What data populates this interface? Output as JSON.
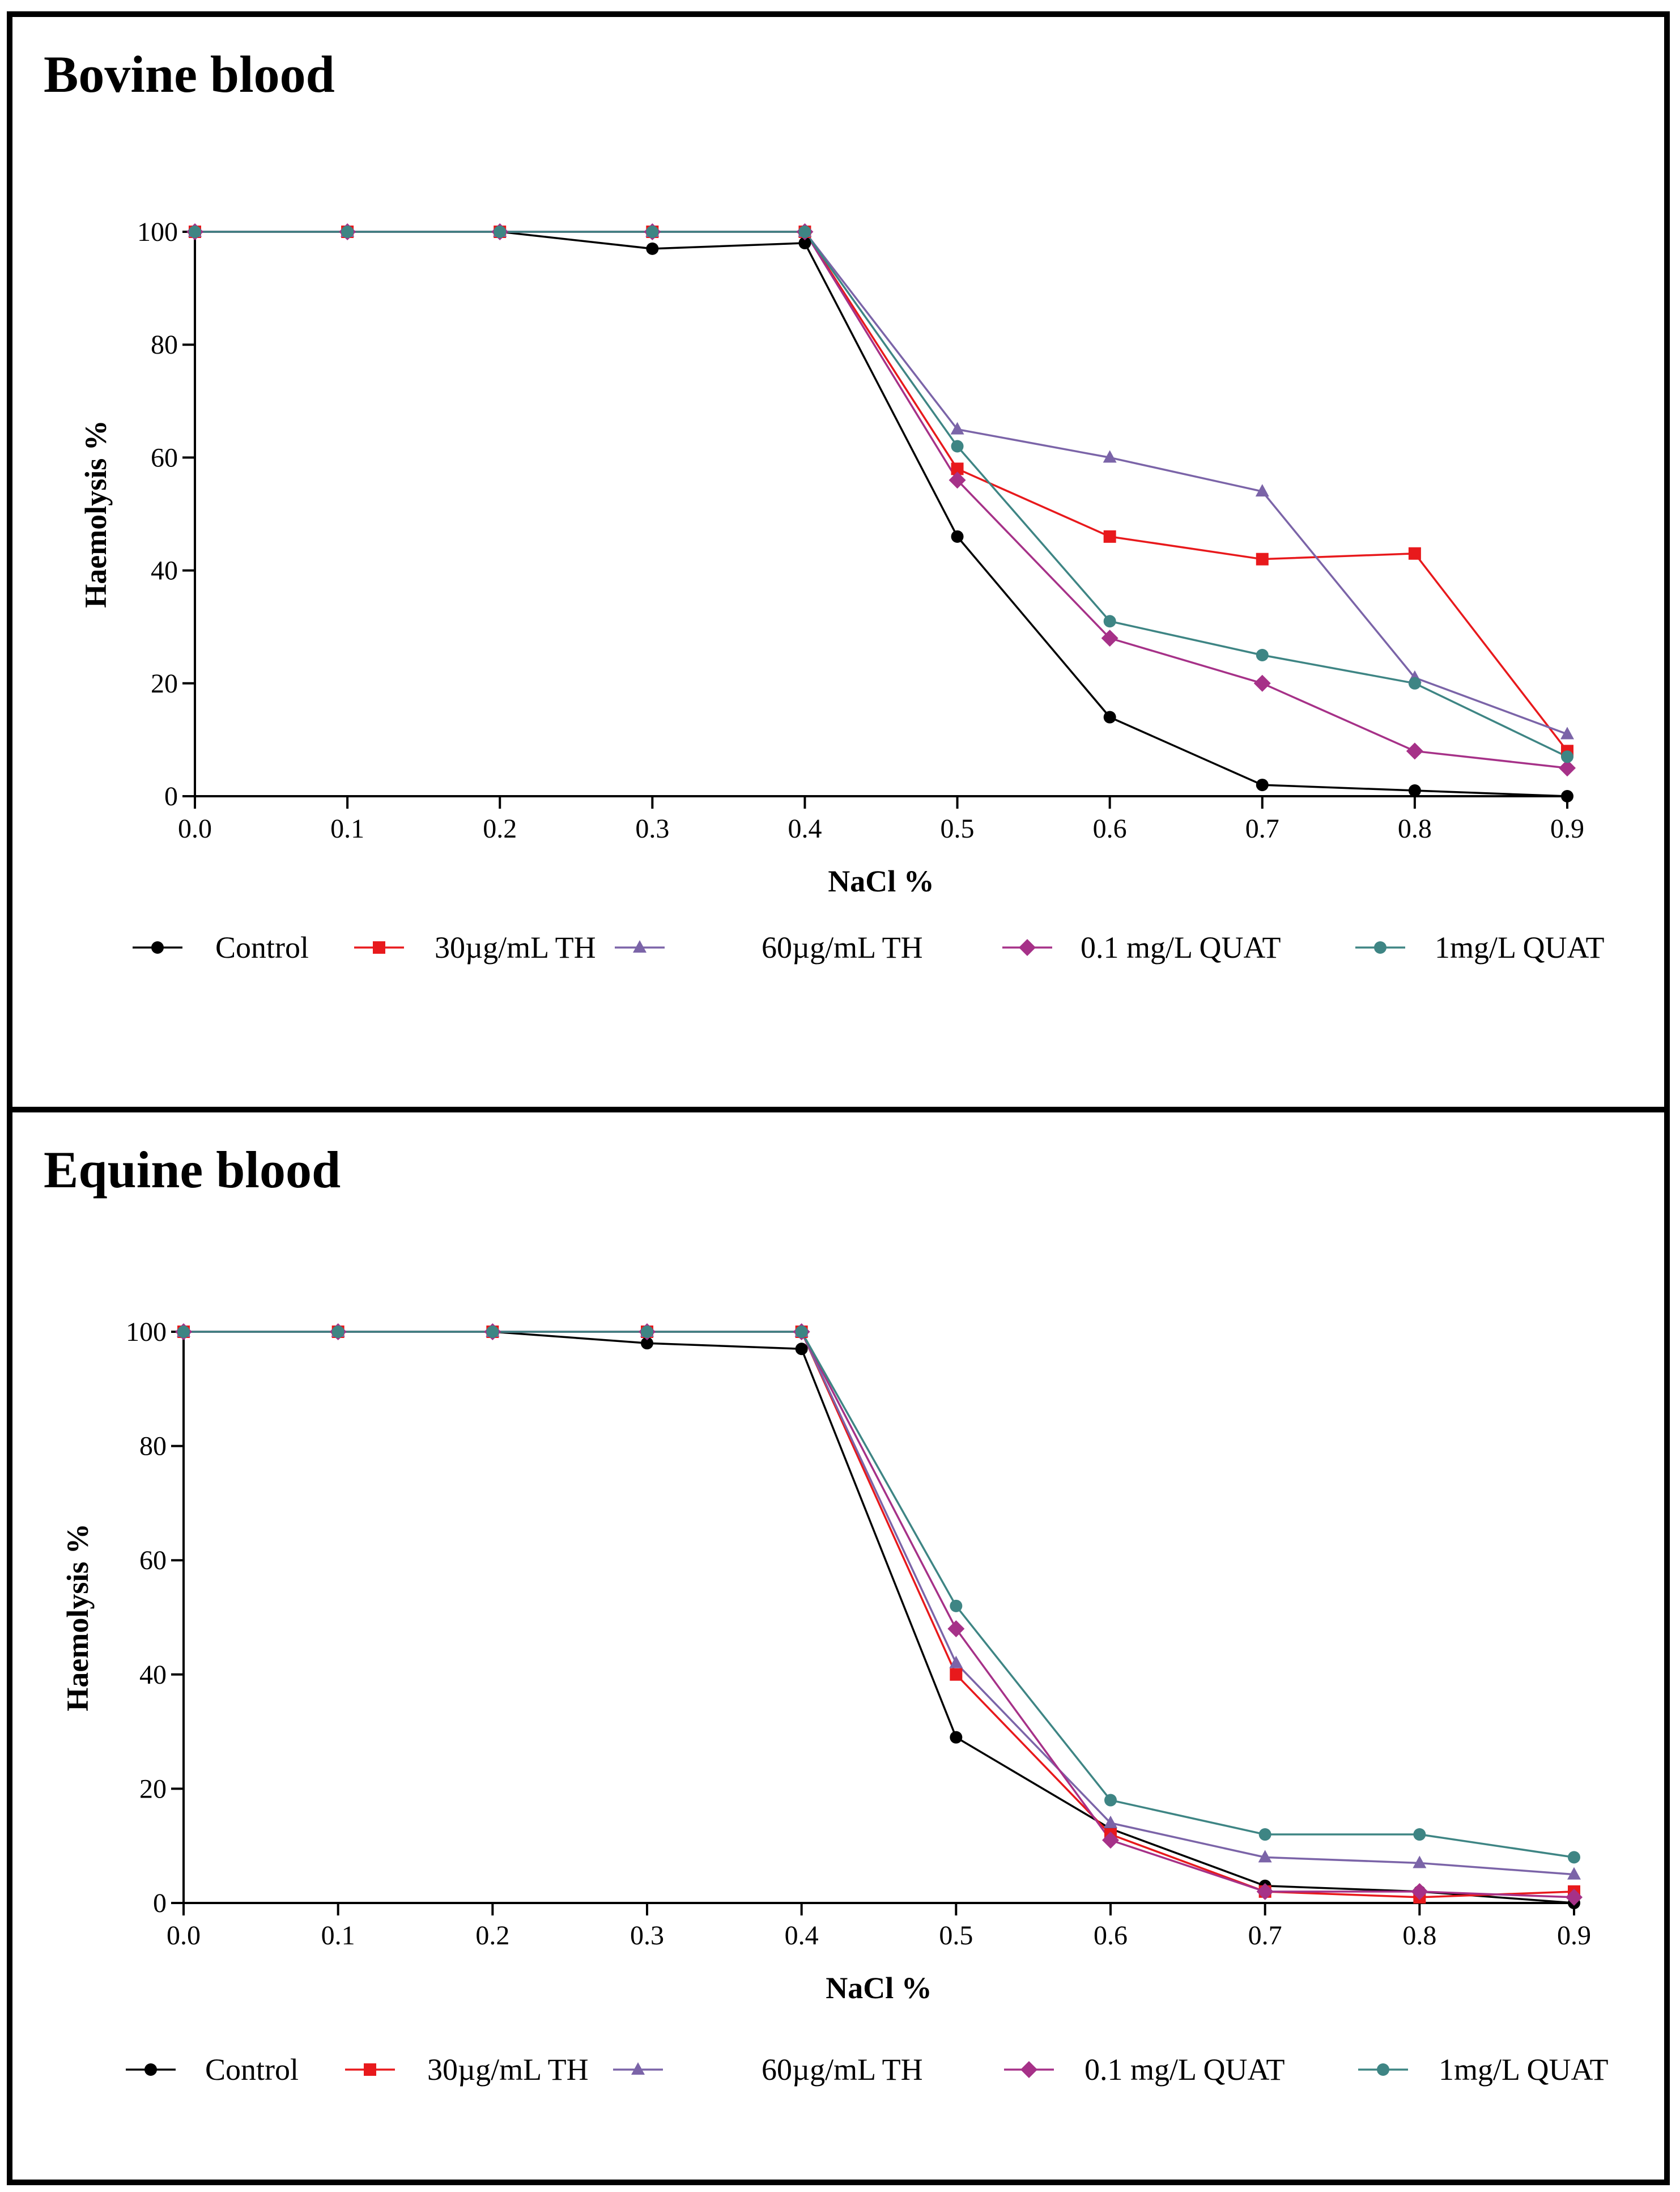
{
  "chart_data": [
    {
      "type": "line",
      "title": "Bovine blood",
      "xlabel": "NaCl %",
      "ylabel": "Haemolysis %",
      "x": [
        0.0,
        0.1,
        0.2,
        0.3,
        0.4,
        0.5,
        0.6,
        0.7,
        0.8,
        0.9
      ],
      "xticks": [
        "0.0",
        "0.1",
        "0.2",
        "0.3",
        "0.4",
        "0.5",
        "0.6",
        "0.7",
        "0.8",
        "0.9"
      ],
      "yticks": [
        "0",
        "20",
        "40",
        "60",
        "80",
        "100"
      ],
      "xlim": [
        0.0,
        0.9
      ],
      "ylim": [
        0,
        100
      ],
      "grid": false,
      "legend_position": "bottom",
      "series": [
        {
          "name": "Control",
          "color": "#000000",
          "marker": "circle",
          "values": [
            100,
            100,
            100,
            97,
            98,
            46,
            14,
            2,
            1,
            0
          ]
        },
        {
          "name": "30µg/mL TH",
          "color": "#e8191c",
          "marker": "square",
          "values": [
            100,
            100,
            100,
            100,
            100,
            58,
            46,
            42,
            43,
            8
          ]
        },
        {
          "name": "60µg/mL TH",
          "color": "#7b64a8",
          "marker": "triangle",
          "values": [
            100,
            100,
            100,
            100,
            100,
            65,
            60,
            54,
            21,
            11
          ]
        },
        {
          "name": "0.1 mg/L QUAT",
          "color": "#a63188",
          "marker": "diamond",
          "values": [
            100,
            100,
            100,
            100,
            100,
            56,
            28,
            20,
            8,
            5
          ]
        },
        {
          "name": "1mg/L QUAT",
          "color": "#3e8584",
          "marker": "circle",
          "values": [
            100,
            100,
            100,
            100,
            100,
            62,
            31,
            25,
            20,
            7
          ]
        }
      ]
    },
    {
      "type": "line",
      "title": "Equine blood",
      "xlabel": "NaCl %",
      "ylabel": "Haemolysis %",
      "x": [
        0.0,
        0.1,
        0.2,
        0.3,
        0.4,
        0.5,
        0.6,
        0.7,
        0.8,
        0.9
      ],
      "xticks": [
        "0.0",
        "0.1",
        "0.2",
        "0.3",
        "0.4",
        "0.5",
        "0.6",
        "0.7",
        "0.8",
        "0.9"
      ],
      "yticks": [
        "0",
        "20",
        "40",
        "60",
        "80",
        "100"
      ],
      "xlim": [
        0.0,
        0.9
      ],
      "ylim": [
        0,
        100
      ],
      "grid": false,
      "legend_position": "bottom",
      "series": [
        {
          "name": "Control",
          "color": "#000000",
          "marker": "circle",
          "values": [
            100,
            100,
            100,
            98,
            97,
            29,
            13,
            3,
            2,
            0
          ]
        },
        {
          "name": "30µg/mL TH",
          "color": "#e8191c",
          "marker": "square",
          "values": [
            100,
            100,
            100,
            100,
            100,
            40,
            12,
            2,
            1,
            2
          ]
        },
        {
          "name": "60µg/mL TH",
          "color": "#7b64a8",
          "marker": "triangle",
          "values": [
            100,
            100,
            100,
            100,
            100,
            42,
            14,
            8,
            7,
            5
          ]
        },
        {
          "name": "0.1 mg/L QUAT",
          "color": "#a63188",
          "marker": "diamond",
          "values": [
            100,
            100,
            100,
            100,
            100,
            48,
            11,
            2,
            2,
            1
          ]
        },
        {
          "name": "1mg/L QUAT",
          "color": "#3e8584",
          "marker": "circle",
          "values": [
            100,
            100,
            100,
            100,
            100,
            52,
            18,
            12,
            12,
            8
          ]
        }
      ]
    }
  ]
}
